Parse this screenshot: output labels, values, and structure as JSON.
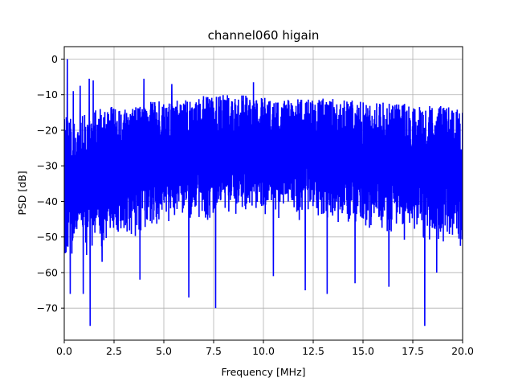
{
  "chart_data": {
    "type": "line",
    "title": "channel060 higain",
    "xlabel": "Frequency [MHz]",
    "ylabel": "PSD [dB]",
    "xlim": [
      0,
      20
    ],
    "ylim": [
      -79,
      3.5
    ],
    "xticks": [
      0,
      2.5,
      5,
      7.5,
      10,
      12.5,
      15,
      17.5,
      20
    ],
    "xtick_labels": [
      "0.0",
      "2.5",
      "5.0",
      "7.5",
      "10.0",
      "12.5",
      "15.0",
      "17.5",
      "20.0"
    ],
    "yticks": [
      0,
      -10,
      -20,
      -30,
      -40,
      -50,
      -60,
      -70
    ],
    "ytick_labels": [
      "0",
      "−10",
      "−20",
      "−30",
      "−40",
      "−50",
      "−60",
      "−70"
    ],
    "grid": true,
    "line_color": "#0000ff",
    "series": [
      {
        "values_note_free": true,
        "envelope_x": [
          0,
          0.5,
          1,
          1.5,
          2,
          2.5,
          3,
          3.5,
          4,
          4.5,
          5,
          5.5,
          6,
          6.5,
          7,
          7.5,
          8,
          8.5,
          9,
          9.5,
          10,
          10.5,
          11,
          11.5,
          12,
          12.5,
          13,
          13.5,
          14,
          14.5,
          15,
          15.5,
          16,
          16.5,
          17,
          17.5,
          18,
          18.5,
          19,
          19.5,
          20
        ],
        "upper_dB": [
          -15,
          -17,
          -15,
          -14,
          -14,
          -13,
          -13,
          -12.5,
          -12,
          -12,
          -11.5,
          -11,
          -10.5,
          -10.5,
          -10,
          -10,
          -10,
          -10,
          -10,
          -10.5,
          -10.5,
          -10.5,
          -11,
          -11,
          -11,
          -11,
          -11,
          -11,
          -11.5,
          -11.5,
          -12,
          -12,
          -12,
          -12.5,
          -12.5,
          -13,
          -13,
          -13,
          -13,
          -13.5,
          -14
        ],
        "lower_dB": [
          -58,
          -58,
          -56,
          -55,
          -54,
          -53,
          -52,
          -51,
          -50,
          -49,
          -48,
          -47,
          -46,
          -46,
          -46,
          -46,
          -45,
          -45,
          -45,
          -45,
          -45,
          -46,
          -46,
          -46,
          -46,
          -47,
          -47,
          -47,
          -48,
          -48,
          -49,
          -49,
          -50,
          -50,
          -51,
          -51,
          -52,
          -53,
          -54,
          -55,
          -56
        ],
        "peaks": [
          {
            "x": 0.15,
            "y": 0
          },
          {
            "x": 0.45,
            "y": -9
          },
          {
            "x": 0.8,
            "y": -7.5
          },
          {
            "x": 1.25,
            "y": -5.5
          },
          {
            "x": 1.45,
            "y": -6
          },
          {
            "x": 4.0,
            "y": -5.5
          },
          {
            "x": 5.4,
            "y": -7
          },
          {
            "x": 7.6,
            "y": -5
          },
          {
            "x": 9.5,
            "y": -6.5
          }
        ],
        "dips": [
          {
            "x": 0.3,
            "y": -66
          },
          {
            "x": 0.95,
            "y": -66
          },
          {
            "x": 1.3,
            "y": -75
          },
          {
            "x": 1.9,
            "y": -57
          },
          {
            "x": 3.8,
            "y": -62
          },
          {
            "x": 6.25,
            "y": -67
          },
          {
            "x": 7.6,
            "y": -70
          },
          {
            "x": 10.5,
            "y": -61
          },
          {
            "x": 12.1,
            "y": -65
          },
          {
            "x": 13.2,
            "y": -66
          },
          {
            "x": 14.6,
            "y": -63
          },
          {
            "x": 16.3,
            "y": -64
          },
          {
            "x": 18.1,
            "y": -75
          },
          {
            "x": 18.7,
            "y": -60
          }
        ]
      }
    ]
  }
}
